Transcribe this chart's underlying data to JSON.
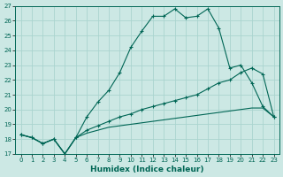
{
  "xlabel": "Humidex (Indice chaleur)",
  "bg_color": "#cce8e4",
  "grid_color": "#aad4cf",
  "line_color": "#006655",
  "ylim": [
    17,
    27
  ],
  "xlim": [
    -0.5,
    23.5
  ],
  "yticks": [
    17,
    18,
    19,
    20,
    21,
    22,
    23,
    24,
    25,
    26,
    27
  ],
  "xticks": [
    0,
    1,
    2,
    3,
    4,
    5,
    6,
    7,
    8,
    9,
    10,
    11,
    12,
    13,
    14,
    15,
    16,
    17,
    18,
    19,
    20,
    21,
    22,
    23
  ],
  "s1_x": [
    0,
    1,
    2,
    3,
    4,
    5,
    6,
    7,
    8,
    9,
    10,
    11,
    12,
    13,
    14,
    15,
    16,
    17,
    18,
    19,
    20,
    21,
    22,
    23
  ],
  "s1_y": [
    18.3,
    18.1,
    17.7,
    18.0,
    17.0,
    18.1,
    19.5,
    20.5,
    21.3,
    22.5,
    24.2,
    25.3,
    26.3,
    26.3,
    26.8,
    26.2,
    26.3,
    26.8,
    25.5,
    22.8,
    23.0,
    21.8,
    20.2,
    19.5
  ],
  "s2_x": [
    0,
    1,
    2,
    3,
    4,
    5,
    6,
    7,
    8,
    9,
    10,
    11,
    12,
    13,
    14,
    15,
    16,
    17,
    18,
    19,
    20,
    21,
    22,
    23
  ],
  "s2_y": [
    18.3,
    18.1,
    17.7,
    18.0,
    17.0,
    18.1,
    18.6,
    18.9,
    19.2,
    19.5,
    19.7,
    20.0,
    20.2,
    20.4,
    20.6,
    20.8,
    21.0,
    21.4,
    21.8,
    22.0,
    22.5,
    22.8,
    22.4,
    19.5
  ],
  "s3_x": [
    0,
    1,
    2,
    3,
    4,
    5,
    6,
    7,
    8,
    9,
    10,
    11,
    12,
    13,
    14,
    15,
    16,
    17,
    18,
    19,
    20,
    21,
    22,
    23
  ],
  "s3_y": [
    18.3,
    18.1,
    17.7,
    18.0,
    17.0,
    18.1,
    18.4,
    18.6,
    18.8,
    18.9,
    19.0,
    19.1,
    19.2,
    19.3,
    19.4,
    19.5,
    19.6,
    19.7,
    19.8,
    19.9,
    20.0,
    20.1,
    20.1,
    19.5
  ]
}
